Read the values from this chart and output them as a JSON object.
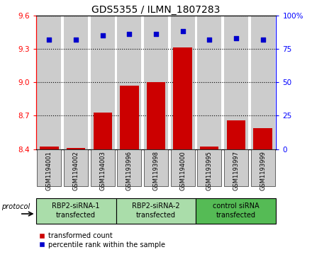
{
  "title": "GDS5355 / ILMN_1807283",
  "samples": [
    "GSM1194001",
    "GSM1194002",
    "GSM1194003",
    "GSM1193996",
    "GSM1193998",
    "GSM1194000",
    "GSM1193995",
    "GSM1193997",
    "GSM1193999"
  ],
  "red_values": [
    8.42,
    8.41,
    8.73,
    8.97,
    9.0,
    9.31,
    8.42,
    8.66,
    8.59
  ],
  "blue_values": [
    82,
    82,
    85,
    86,
    86,
    88,
    82,
    83,
    82
  ],
  "ylim_left": [
    8.4,
    9.6
  ],
  "ylim_right": [
    0,
    100
  ],
  "yticks_left": [
    8.4,
    8.7,
    9.0,
    9.3,
    9.6
  ],
  "yticks_right": [
    0,
    25,
    50,
    75,
    100
  ],
  "groups": [
    {
      "label": "RBP2-siRNA-1\ntransfected",
      "indices": [
        0,
        1,
        2
      ],
      "color": "#aaddaa"
    },
    {
      "label": "RBP2-siRNA-2\ntransfected",
      "indices": [
        3,
        4,
        5
      ],
      "color": "#aaddaa"
    },
    {
      "label": "control siRNA\ntransfected",
      "indices": [
        6,
        7,
        8
      ],
      "color": "#55bb55"
    }
  ],
  "bar_color": "#cc0000",
  "dot_color": "#0000cc",
  "col_bg_color": "#cccccc",
  "plot_bg_color": "#ffffff",
  "legend_red": "transformed count",
  "legend_blue": "percentile rank within the sample",
  "protocol_label": "protocol",
  "title_fontsize": 10,
  "tick_fontsize": 7.5,
  "sample_fontsize": 6,
  "group_fontsize": 7,
  "legend_fontsize": 7
}
